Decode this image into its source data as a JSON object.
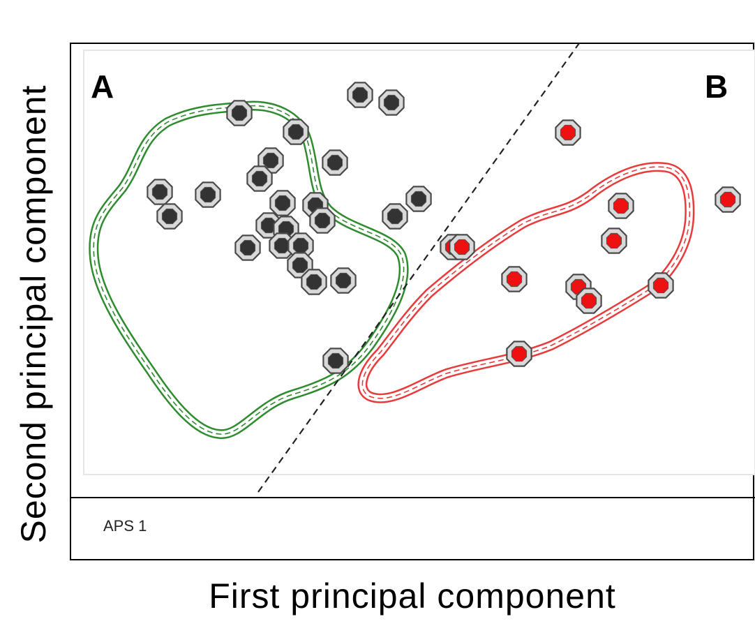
{
  "chart_data": {
    "type": "scatter",
    "xlabel": "First principal component",
    "ylabel": "Second principal component",
    "group_labels": {
      "A": "A",
      "B": "B"
    },
    "footer_label": "APS 1",
    "colors": {
      "group_a": "#333333",
      "group_b": "#ee1111",
      "contour_a": "#2e8b2e",
      "contour_b": "#e83a3a",
      "divider": "#222222"
    },
    "series": [
      {
        "name": "A",
        "points": [
          [
            343,
            162
          ],
          [
            424,
            189
          ],
          [
            516,
            136
          ],
          [
            561,
            147
          ],
          [
            388,
            230
          ],
          [
            372,
            256
          ],
          [
            480,
            233
          ],
          [
            229,
            275
          ],
          [
            243,
            310
          ],
          [
            298,
            279
          ],
          [
            405,
            291
          ],
          [
            452,
            294
          ],
          [
            462,
            316
          ],
          [
            566,
            310
          ],
          [
            600,
            285
          ],
          [
            385,
            323
          ],
          [
            410,
            328
          ],
          [
            355,
            355
          ],
          [
            404,
            352
          ],
          [
            431,
            352
          ],
          [
            430,
            380
          ],
          [
            450,
            404
          ],
          [
            492,
            402
          ],
          [
            481,
            517
          ]
        ]
      },
      {
        "name": "B",
        "points": [
          [
            814,
            190
          ],
          [
            890,
            295
          ],
          [
            1043,
            286
          ],
          [
            880,
            345
          ],
          [
            649,
            354
          ],
          [
            662,
            354
          ],
          [
            737,
            400
          ],
          [
            829,
            411
          ],
          [
            844,
            431
          ],
          [
            947,
            409
          ],
          [
            744,
            507
          ]
        ]
      }
    ],
    "axes": {
      "ticks": false,
      "grid": false
    }
  }
}
